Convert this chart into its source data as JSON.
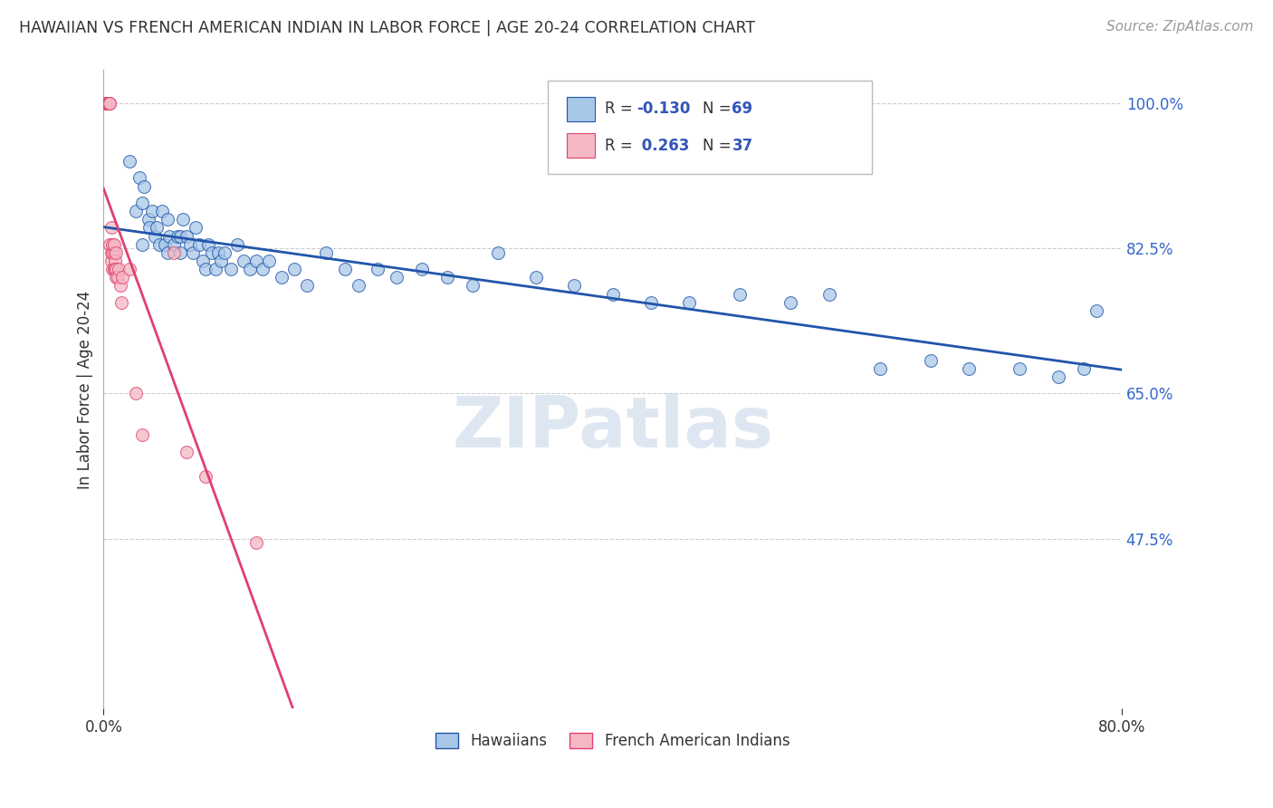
{
  "title": "HAWAIIAN VS FRENCH AMERICAN INDIAN IN LABOR FORCE | AGE 20-24 CORRELATION CHART",
  "source": "Source: ZipAtlas.com",
  "ylabel": "In Labor Force | Age 20-24",
  "xmin": 0.0,
  "xmax": 0.8,
  "ymin": 0.27,
  "ymax": 1.04,
  "ytick_positions": [
    1.0,
    0.825,
    0.65,
    0.475
  ],
  "ytick_labels": [
    "100.0%",
    "82.5%",
    "65.0%",
    "47.5%"
  ],
  "grid_color": "#cccccc",
  "background_color": "#ffffff",
  "watermark": "ZIPatlas",
  "color_blue": "#a8c8e8",
  "color_pink": "#f4b8c4",
  "line_blue": "#2255aa",
  "line_pink": "#e04070",
  "hawaiians_x": [
    0.02,
    0.025,
    0.028,
    0.03,
    0.03,
    0.032,
    0.035,
    0.036,
    0.038,
    0.04,
    0.042,
    0.044,
    0.046,
    0.048,
    0.05,
    0.05,
    0.052,
    0.055,
    0.058,
    0.06,
    0.06,
    0.062,
    0.065,
    0.068,
    0.07,
    0.072,
    0.075,
    0.078,
    0.08,
    0.082,
    0.085,
    0.088,
    0.09,
    0.092,
    0.095,
    0.1,
    0.105,
    0.11,
    0.115,
    0.12,
    0.125,
    0.13,
    0.14,
    0.15,
    0.16,
    0.175,
    0.19,
    0.2,
    0.215,
    0.23,
    0.25,
    0.27,
    0.29,
    0.31,
    0.34,
    0.37,
    0.4,
    0.43,
    0.46,
    0.5,
    0.54,
    0.57,
    0.61,
    0.65,
    0.68,
    0.72,
    0.75,
    0.77,
    0.78
  ],
  "hawaiians_y": [
    0.93,
    0.87,
    0.91,
    0.83,
    0.88,
    0.9,
    0.86,
    0.85,
    0.87,
    0.84,
    0.85,
    0.83,
    0.87,
    0.83,
    0.86,
    0.82,
    0.84,
    0.83,
    0.84,
    0.84,
    0.82,
    0.86,
    0.84,
    0.83,
    0.82,
    0.85,
    0.83,
    0.81,
    0.8,
    0.83,
    0.82,
    0.8,
    0.82,
    0.81,
    0.82,
    0.8,
    0.83,
    0.81,
    0.8,
    0.81,
    0.8,
    0.81,
    0.79,
    0.8,
    0.78,
    0.82,
    0.8,
    0.78,
    0.8,
    0.79,
    0.8,
    0.79,
    0.78,
    0.82,
    0.79,
    0.78,
    0.77,
    0.76,
    0.76,
    0.77,
    0.76,
    0.77,
    0.68,
    0.69,
    0.68,
    0.68,
    0.67,
    0.68,
    0.75
  ],
  "french_ai_x": [
    0.002,
    0.002,
    0.003,
    0.003,
    0.003,
    0.004,
    0.004,
    0.004,
    0.005,
    0.005,
    0.005,
    0.006,
    0.006,
    0.006,
    0.007,
    0.007,
    0.007,
    0.008,
    0.008,
    0.008,
    0.009,
    0.009,
    0.01,
    0.01,
    0.01,
    0.011,
    0.012,
    0.013,
    0.014,
    0.015,
    0.02,
    0.025,
    0.03,
    0.055,
    0.065,
    0.08,
    0.12
  ],
  "french_ai_y": [
    1.0,
    1.0,
    1.0,
    1.0,
    1.0,
    1.0,
    1.0,
    1.0,
    1.0,
    1.0,
    0.83,
    0.85,
    0.81,
    0.82,
    0.82,
    0.83,
    0.8,
    0.82,
    0.83,
    0.8,
    0.81,
    0.8,
    0.82,
    0.8,
    0.79,
    0.79,
    0.8,
    0.78,
    0.76,
    0.79,
    0.8,
    0.65,
    0.6,
    0.82,
    0.58,
    0.55,
    0.47
  ]
}
